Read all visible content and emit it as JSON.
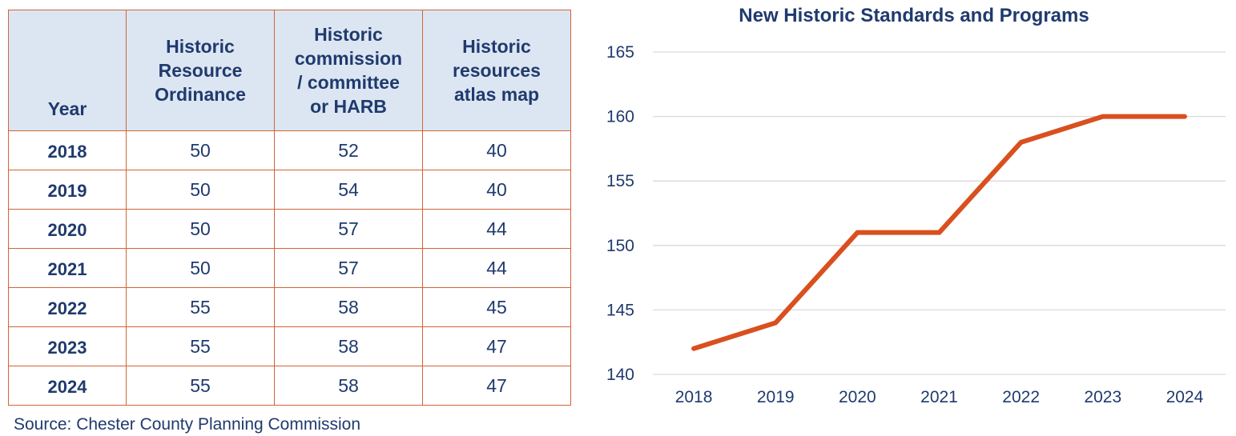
{
  "table": {
    "headers": [
      "Year",
      "Historic Resource Ordinance",
      "Historic commission / committee or HARB",
      "Historic resources atlas map"
    ],
    "header_lines": [
      [
        "Year"
      ],
      [
        "Historic",
        "Resource",
        "Ordinance"
      ],
      [
        "Historic",
        "commission",
        "/ committee",
        "or HARB"
      ],
      [
        "Historic",
        "resources",
        "atlas map"
      ]
    ],
    "rows": [
      [
        "2018",
        "50",
        "52",
        "40"
      ],
      [
        "2019",
        "50",
        "54",
        "40"
      ],
      [
        "2020",
        "50",
        "57",
        "44"
      ],
      [
        "2021",
        "50",
        "57",
        "44"
      ],
      [
        "2022",
        "55",
        "58",
        "45"
      ],
      [
        "2023",
        "55",
        "58",
        "47"
      ],
      [
        "2024",
        "55",
        "58",
        "47"
      ]
    ]
  },
  "source": "Source: Chester County Planning Commission",
  "colors": {
    "line": "#d9501f",
    "text": "#1f3a6e",
    "header_bg": "#dce6f2",
    "table_border": "#d0643a",
    "grid": "#d9d9d9"
  },
  "chart_data": {
    "type": "line",
    "title": "New Historic Standards and Programs",
    "xlabel": "",
    "ylabel": "",
    "categories": [
      "2018",
      "2019",
      "2020",
      "2021",
      "2022",
      "2023",
      "2024"
    ],
    "series": [
      {
        "values": [
          142,
          144,
          151,
          151,
          158,
          160,
          160
        ]
      }
    ],
    "ylim": [
      140,
      165
    ],
    "yticks": [
      "140",
      "145",
      "150",
      "155",
      "160",
      "165"
    ],
    "grid": true,
    "legend": "none"
  }
}
